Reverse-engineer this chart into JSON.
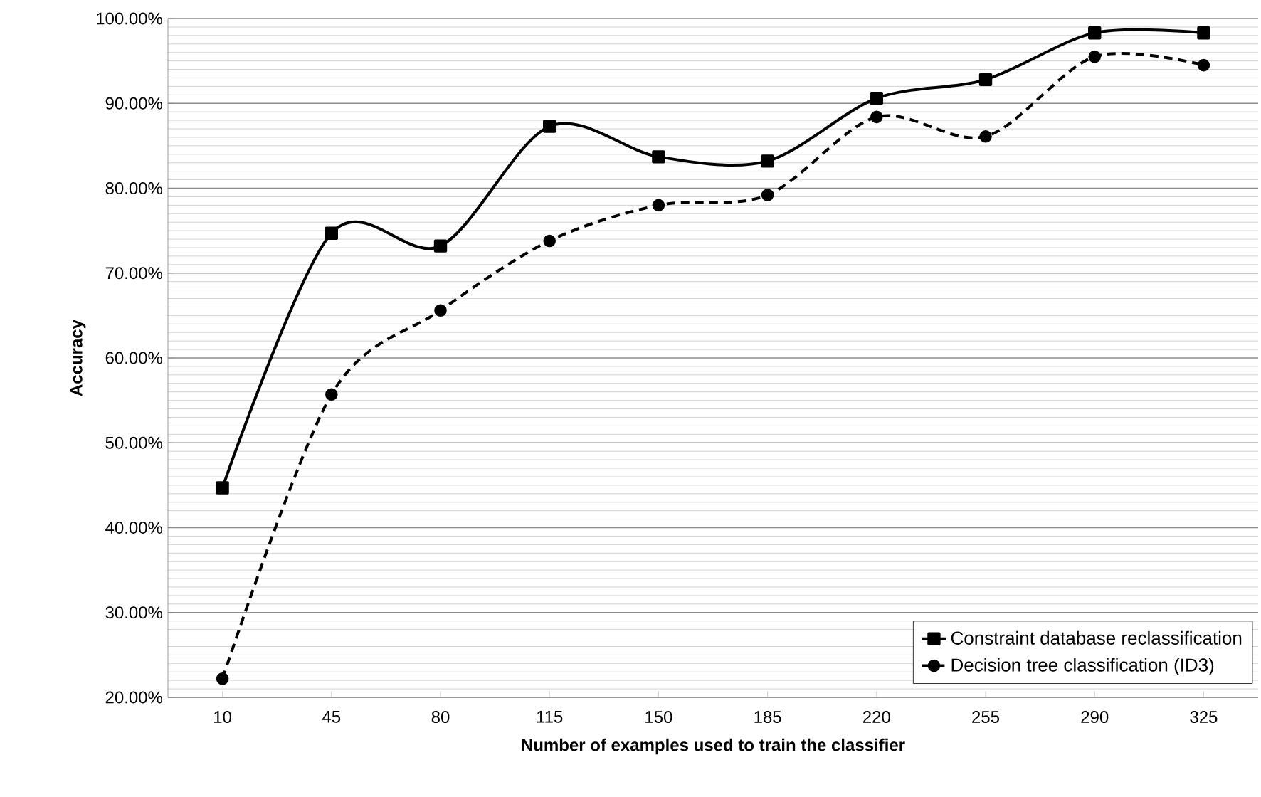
{
  "chart_data": {
    "type": "line",
    "xlabel": "Number of examples used to train the classifier",
    "ylabel": "Accuracy",
    "categories": [
      "10",
      "45",
      "80",
      "115",
      "150",
      "185",
      "220",
      "255",
      "290",
      "325"
    ],
    "series": [
      {
        "name": "Constraint database reclassification",
        "color": "#000000",
        "marker": "square",
        "line_style": "solid",
        "values": [
          44.7,
          74.7,
          73.2,
          87.3,
          83.7,
          83.2,
          90.6,
          92.8,
          98.3,
          98.3
        ]
      },
      {
        "name": "Decision tree classification (ID3)",
        "color": "#000000",
        "marker": "circle",
        "line_style": "dashed",
        "values": [
          22.2,
          55.7,
          65.6,
          73.8,
          78.0,
          79.2,
          88.4,
          86.1,
          95.5,
          94.5
        ]
      }
    ],
    "ylim": [
      20,
      100
    ],
    "yticks": [
      {
        "value": 20,
        "label": "20.00%"
      },
      {
        "value": 30,
        "label": "30.00%"
      },
      {
        "value": 40,
        "label": "40.00%"
      },
      {
        "value": 50,
        "label": "50.00%"
      },
      {
        "value": 60,
        "label": "60.00%"
      },
      {
        "value": 70,
        "label": "70.00%"
      },
      {
        "value": 80,
        "label": "80.00%"
      },
      {
        "value": 90,
        "label": "90.00%"
      },
      {
        "value": 100,
        "label": "100.00%"
      }
    ],
    "grid": "y",
    "legend": "bottom right"
  }
}
